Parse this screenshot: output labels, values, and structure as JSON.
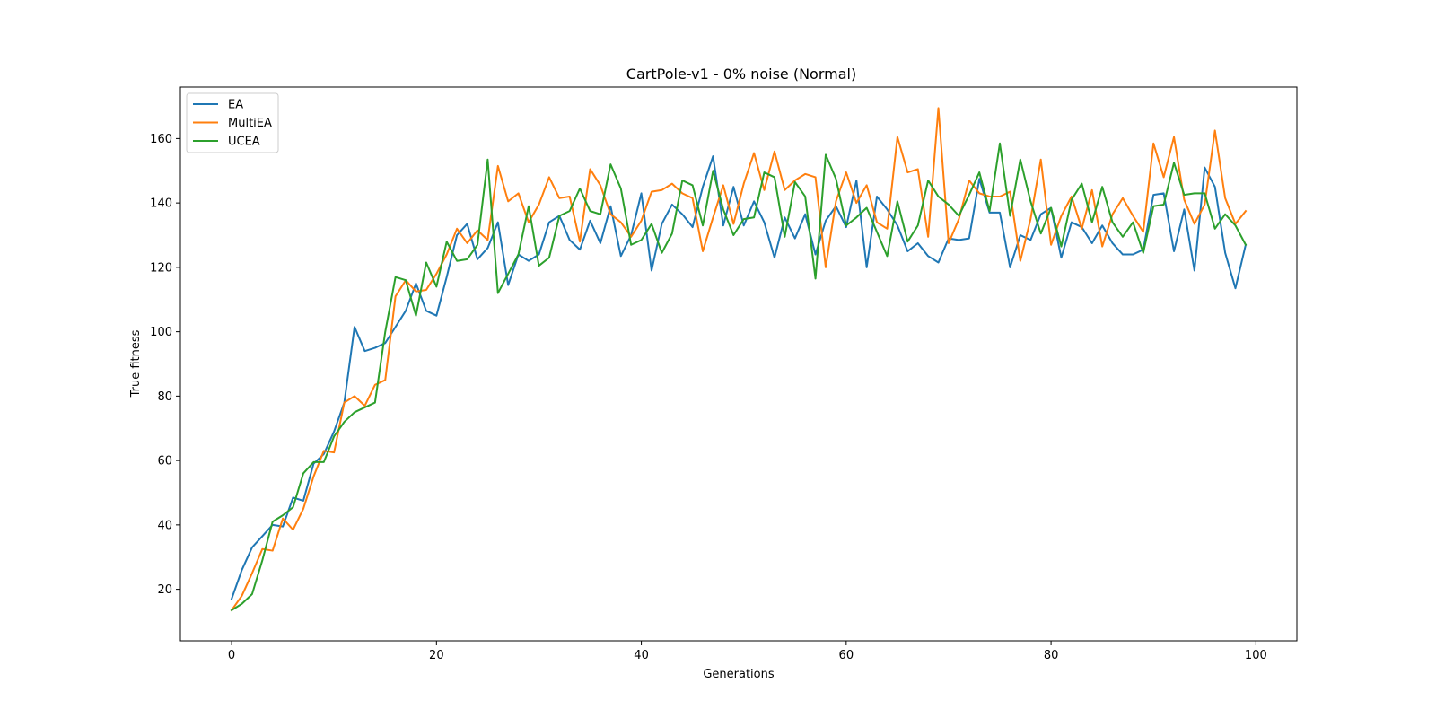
{
  "chart_data": {
    "type": "line",
    "title": "CartPole-v1 - 0% noise (Normal)",
    "xlabel": "Generations",
    "ylabel": "True fitness",
    "xlim": [
      -5,
      104
    ],
    "ylim": [
      4,
      176
    ],
    "xticks": [
      "0",
      "20",
      "40",
      "60",
      "80",
      "100"
    ],
    "yticks": [
      "20",
      "40",
      "60",
      "80",
      "100",
      "120",
      "140",
      "160"
    ],
    "grid": false,
    "legend_position": "upper-left",
    "x": [
      0,
      1,
      2,
      3,
      4,
      5,
      6,
      7,
      8,
      9,
      10,
      11,
      12,
      13,
      14,
      15,
      16,
      17,
      18,
      19,
      20,
      21,
      22,
      23,
      24,
      25,
      26,
      27,
      28,
      29,
      30,
      31,
      32,
      33,
      34,
      35,
      36,
      37,
      38,
      39,
      40,
      41,
      42,
      43,
      44,
      45,
      46,
      47,
      48,
      49,
      50,
      51,
      52,
      53,
      54,
      55,
      56,
      57,
      58,
      59,
      60,
      61,
      62,
      63,
      64,
      65,
      66,
      67,
      68,
      69,
      70,
      71,
      72,
      73,
      74,
      75,
      76,
      77,
      78,
      79,
      80,
      81,
      82,
      83,
      84,
      85,
      86,
      87,
      88,
      89,
      90,
      91,
      92,
      93,
      94,
      95,
      96,
      97,
      98,
      99
    ],
    "series": [
      {
        "name": "EA",
        "color": "#1f77b4",
        "values": [
          17,
          26,
          33,
          36.5,
          40,
          39.5,
          48.5,
          47.5,
          59,
          62,
          69,
          78,
          101.5,
          94,
          95,
          96.5,
          101.5,
          106.5,
          115,
          106.5,
          105,
          117,
          130,
          133.5,
          122.5,
          126,
          134,
          114.5,
          124,
          122,
          124,
          134,
          136,
          128.5,
          125.5,
          134.5,
          127.5,
          139,
          123.5,
          130,
          143,
          119,
          133.5,
          139.5,
          136.5,
          132.5,
          145,
          154.5,
          133,
          145,
          133,
          140.5,
          134,
          123,
          135.5,
          129,
          136.5,
          124,
          134.5,
          139,
          132.5,
          147,
          120,
          142,
          138,
          133,
          125,
          127.5,
          123.5,
          121.5,
          129,
          128.5,
          129,
          147.5,
          137,
          137,
          120,
          130,
          128.5,
          136.5,
          138.5,
          123,
          134,
          132.5,
          127.5,
          133,
          127.5,
          124,
          124,
          125.5,
          142.5,
          143,
          125,
          138,
          119,
          151,
          145,
          124.5,
          113.5,
          127
        ]
      },
      {
        "name": "MultiEA",
        "color": "#ff7f0e",
        "values": [
          13.5,
          18,
          25,
          32.5,
          32,
          42,
          38.5,
          45,
          55,
          63,
          62.5,
          78,
          80,
          77,
          83.5,
          85,
          111,
          116,
          112.5,
          113,
          118,
          124,
          132,
          127.5,
          131.5,
          128.5,
          151.5,
          140.5,
          143,
          134,
          139.5,
          148,
          141.5,
          142,
          128,
          150.5,
          145.5,
          136.5,
          134,
          129.5,
          134.5,
          143.5,
          144,
          146,
          143,
          141.5,
          125,
          135.5,
          145.5,
          133.5,
          146,
          155.5,
          144,
          156,
          144,
          147,
          149,
          148,
          120,
          140.5,
          149.5,
          140,
          145.5,
          134,
          132,
          160.5,
          149.5,
          150.5,
          129.5,
          169.5,
          127.5,
          135,
          147,
          143,
          142,
          142,
          143.5,
          122,
          135,
          153.5,
          127,
          136,
          142,
          132,
          144,
          126.5,
          136.5,
          141.5,
          136,
          131,
          158.5,
          148,
          160.5,
          141,
          133.5,
          139.5,
          162.5,
          141.5,
          133.5,
          137.5
        ]
      },
      {
        "name": "UCEA",
        "color": "#2ca02c",
        "values": [
          13.5,
          15.5,
          18.5,
          29,
          41,
          43,
          45.5,
          56,
          59.5,
          59.5,
          67.5,
          72,
          75,
          76.5,
          78,
          100,
          117,
          116,
          105,
          121.5,
          114,
          128,
          122,
          122.5,
          127,
          153.5,
          112,
          118,
          124,
          139,
          120.5,
          123,
          136,
          137.5,
          144.5,
          137.5,
          136.5,
          152,
          144.5,
          127,
          128.5,
          133.5,
          124.5,
          130.5,
          147,
          145.5,
          133,
          150,
          138,
          130,
          135,
          135.5,
          149.5,
          148,
          129.5,
          146.5,
          142,
          116.5,
          155,
          147.5,
          133,
          135.5,
          138.5,
          131,
          123.5,
          140.5,
          128,
          133,
          147,
          142,
          139.5,
          136,
          142.5,
          149.5,
          137.5,
          158.5,
          136,
          153.5,
          140.5,
          130.5,
          138.5,
          126.5,
          141,
          146,
          134,
          145,
          134,
          129.5,
          134,
          124.5,
          139,
          139.5,
          152.5,
          142.5,
          143,
          143,
          132,
          136.5,
          133,
          127
        ]
      }
    ]
  }
}
